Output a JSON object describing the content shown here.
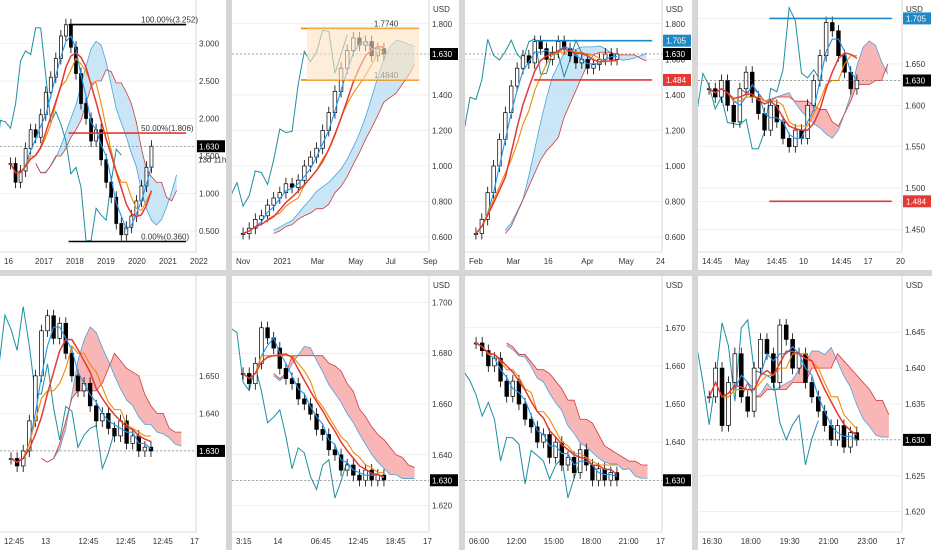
{
  "colors": {
    "up": "#ffffff",
    "down": "#000000",
    "cloud_bull": "#bfe0f5",
    "cloud_bear": "#f7a9a9",
    "tenkan": "#2196f3",
    "kijun": "#f08a00",
    "chikou": "#1c8fa0",
    "ma": "#e53935",
    "blue_marker": "#1e88c8",
    "red_marker": "#e53935",
    "axis_text": "#333333",
    "grid": "#e6e6e6"
  },
  "panels": [
    {
      "key": "p1",
      "currency": "",
      "price_ticks": [
        "3.000",
        "2.500",
        "2.000",
        "1.630",
        "1.500",
        "1.000",
        "0.500"
      ],
      "time_ticks": [
        "16",
        "2017",
        "2018",
        "2019",
        "2020",
        "2021",
        "2022"
      ],
      "annotations": [
        "100.00%(3.252)",
        "50.00%(1.806)",
        "0.00%(0.360)"
      ],
      "current_price": "1.630",
      "countdown": "13d 11h",
      "chart_data": {
        "type": "candlestick",
        "xlabel": "",
        "ylabel": "",
        "ylim": [
          0.3,
          3.5
        ],
        "closes": [
          1.4,
          1.15,
          1.3,
          1.6,
          1.85,
          1.75,
          2.05,
          2.35,
          2.55,
          2.8,
          3.1,
          3.25,
          2.95,
          2.6,
          2.2,
          2.0,
          1.7,
          1.85,
          1.45,
          1.15,
          0.95,
          0.6,
          0.45,
          0.55,
          0.7,
          0.9,
          1.1,
          1.35,
          1.63
        ]
      }
    },
    {
      "key": "p2",
      "currency": "USD",
      "price_ticks": [
        "1.800",
        "1.630",
        "1.400",
        "1.200",
        "1.000",
        "0.800",
        "0.600"
      ],
      "time_ticks": [
        "Nov",
        "2021",
        "Mar",
        "May",
        "Jul",
        "Sep"
      ],
      "annotations": [
        "1.7740",
        "1.4840"
      ],
      "current_price": "1.630",
      "chart_data": {
        "type": "candlestick",
        "xlabel": "",
        "ylabel": "",
        "ylim": [
          0.55,
          1.9
        ],
        "closes": [
          0.62,
          0.65,
          0.7,
          0.72,
          0.78,
          0.82,
          0.85,
          0.9,
          0.88,
          0.92,
          1.0,
          1.05,
          1.1,
          1.2,
          1.3,
          1.42,
          1.55,
          1.65,
          1.72,
          1.68,
          1.7,
          1.62,
          1.66,
          1.63
        ]
      }
    },
    {
      "key": "p3",
      "currency": "USD",
      "price_ticks": [
        "1.800",
        "1.600",
        "1.400",
        "1.200",
        "1.000",
        "0.800",
        "0.600"
      ],
      "time_ticks": [
        "Feb",
        "Mar",
        "16",
        "Apr",
        "May",
        "24"
      ],
      "annotations": [
        "1.705",
        "1.484"
      ],
      "current_price": "1.630",
      "chart_data": {
        "type": "candlestick",
        "xlabel": "",
        "ylabel": "",
        "ylim": [
          0.55,
          1.9
        ],
        "closes": [
          0.62,
          0.7,
          0.85,
          1.0,
          1.15,
          1.3,
          1.45,
          1.55,
          1.62,
          1.58,
          1.7,
          1.66,
          1.6,
          1.64,
          1.7,
          1.66,
          1.62,
          1.58,
          1.6,
          1.55,
          1.57,
          1.6,
          1.63,
          1.6,
          1.63
        ]
      }
    },
    {
      "key": "p4",
      "currency": "USD",
      "price_ticks": [
        "1.705",
        "1.650",
        "1.630",
        "1.600",
        "1.550",
        "1.500",
        "1.484",
        "1.450"
      ],
      "time_ticks": [
        "14:45",
        "May",
        "14:45",
        "10",
        "14:45",
        "17",
        "20"
      ],
      "annotations": [
        "1.705",
        "1.484"
      ],
      "current_price": "1.630",
      "chart_data": {
        "type": "candlestick",
        "xlabel": "",
        "ylabel": "",
        "ylim": [
          1.43,
          1.72
        ],
        "closes": [
          1.62,
          1.61,
          1.63,
          1.6,
          1.58,
          1.62,
          1.64,
          1.61,
          1.59,
          1.57,
          1.6,
          1.58,
          1.56,
          1.55,
          1.57,
          1.56,
          1.6,
          1.63,
          1.66,
          1.7,
          1.69,
          1.66,
          1.64,
          1.62,
          1.63
        ]
      }
    },
    {
      "key": "p5",
      "currency": "",
      "price_ticks": [
        "1.650",
        "1.640",
        "1.630"
      ],
      "time_ticks": [
        "12:45",
        "13",
        "12:45",
        "12:45",
        "12:45",
        "17"
      ],
      "annotations": [],
      "current_price": "1.630",
      "chart_data": {
        "type": "candlestick",
        "xlabel": "",
        "ylabel": "",
        "ylim": [
          1.61,
          1.675
        ],
        "closes": [
          1.628,
          1.626,
          1.63,
          1.638,
          1.65,
          1.662,
          1.666,
          1.66,
          1.664,
          1.656,
          1.65,
          1.646,
          1.648,
          1.642,
          1.638,
          1.64,
          1.636,
          1.634,
          1.638,
          1.632,
          1.634,
          1.63,
          1.631,
          1.63
        ]
      }
    },
    {
      "key": "p6",
      "currency": "USD",
      "price_ticks": [
        "1.700",
        "1.680",
        "1.660",
        "1.640",
        "1.630",
        "1.620"
      ],
      "time_ticks": [
        "3:15",
        "14",
        "06:45",
        "12:45",
        "18:45",
        "17"
      ],
      "annotations": [],
      "current_price": "1.630",
      "chart_data": {
        "type": "candlestick",
        "xlabel": "",
        "ylabel": "",
        "ylim": [
          1.612,
          1.708
        ],
        "closes": [
          1.672,
          1.668,
          1.676,
          1.69,
          1.686,
          1.682,
          1.674,
          1.67,
          1.668,
          1.662,
          1.66,
          1.656,
          1.65,
          1.648,
          1.642,
          1.64,
          1.634,
          1.636,
          1.632,
          1.63,
          1.634,
          1.63,
          1.632,
          1.63
        ]
      }
    },
    {
      "key": "p7",
      "currency": "USD",
      "price_ticks": [
        "1.670",
        "1.660",
        "1.650",
        "1.640",
        "1.630"
      ],
      "time_ticks": [
        "06:00",
        "12:00",
        "15:00",
        "18:00",
        "21:00",
        "17"
      ],
      "annotations": [],
      "current_price": "1.630",
      "chart_data": {
        "type": "candlestick",
        "xlabel": "",
        "ylabel": "",
        "ylim": [
          1.618,
          1.682
        ],
        "closes": [
          1.666,
          1.664,
          1.66,
          1.662,
          1.656,
          1.652,
          1.656,
          1.65,
          1.646,
          1.644,
          1.64,
          1.642,
          1.636,
          1.64,
          1.634,
          1.636,
          1.632,
          1.638,
          1.634,
          1.63,
          1.633,
          1.63,
          1.632,
          1.63
        ]
      }
    },
    {
      "key": "p8",
      "currency": "USD",
      "price_ticks": [
        "1.645",
        "1.640",
        "1.635",
        "1.630",
        "1.625",
        "1.620"
      ],
      "time_ticks": [
        "16:30",
        "18:00",
        "19:30",
        "21:00",
        "23:00",
        "17"
      ],
      "annotations": [],
      "current_price": "1.630",
      "chart_data": {
        "type": "candlestick",
        "xlabel": "",
        "ylabel": "",
        "ylim": [
          1.618,
          1.652
        ],
        "closes": [
          1.636,
          1.64,
          1.632,
          1.638,
          1.642,
          1.636,
          1.634,
          1.64,
          1.644,
          1.642,
          1.638,
          1.646,
          1.644,
          1.64,
          1.642,
          1.638,
          1.636,
          1.634,
          1.632,
          1.63,
          1.632,
          1.629,
          1.631,
          1.63
        ]
      }
    }
  ]
}
